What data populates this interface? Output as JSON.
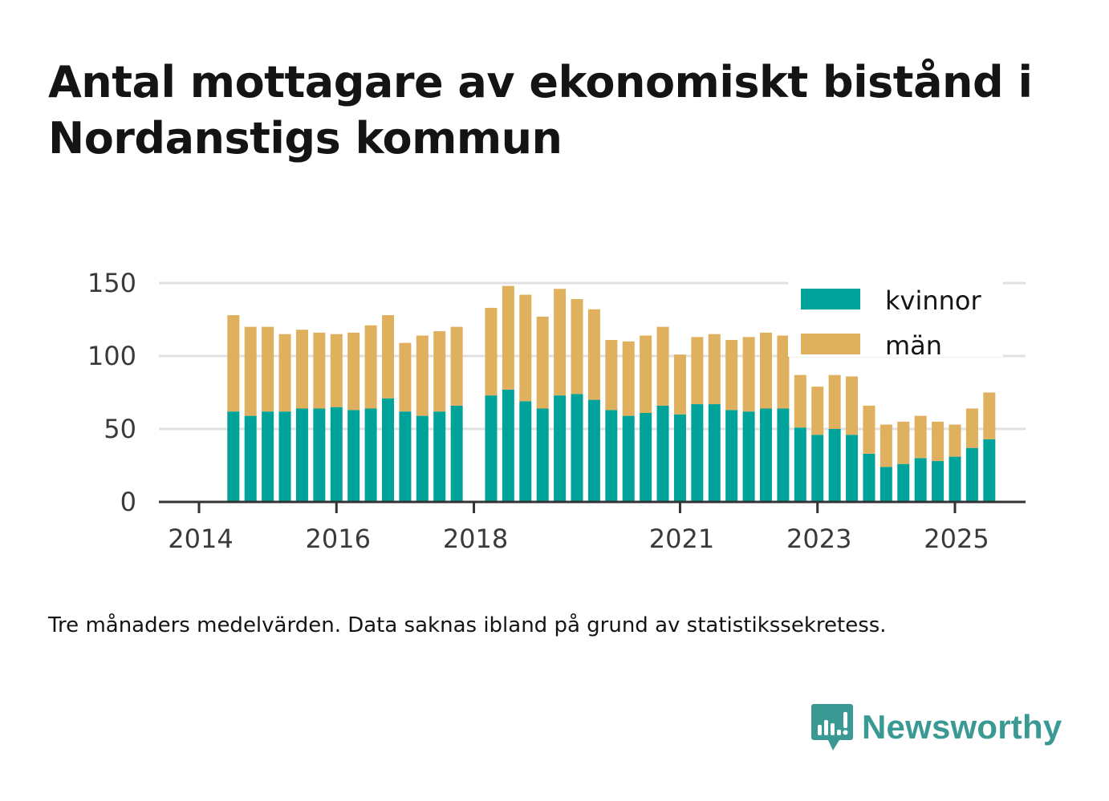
{
  "title": "Antal mottagare av ekonomiskt bistånd i Nordanstigs kommun",
  "caption": "Tre månaders medelvärden. Data saknas ibland på grund av statistikssekretess.",
  "logo": {
    "text": "Newsworthy",
    "icon": "newsworthy-chart-bubble-icon"
  },
  "colors": {
    "kvinnor": "#00a39a",
    "man": "#dfb05e",
    "grid": "#e1e1e1",
    "axis": "#333333"
  },
  "chart_data": {
    "type": "bar",
    "stacked": true,
    "title": "",
    "xlabel": "",
    "ylabel": "",
    "ylim": [
      0,
      150
    ],
    "y_ticks": [
      0,
      50,
      100,
      150
    ],
    "x_tick_labels": [
      {
        "year": 2014,
        "label": "2014"
      },
      {
        "year": 2016,
        "label": "2016"
      },
      {
        "year": 2018,
        "label": "2018"
      },
      {
        "year": 2021,
        "label": "2021"
      },
      {
        "year": 2023,
        "label": "2023"
      },
      {
        "year": 2025,
        "label": "2025"
      }
    ],
    "grid": true,
    "legend_position": "top-right",
    "categories": [
      "2014-Q2",
      "2014-Q3",
      "2014-Q4",
      "2015-Q1",
      "2015-Q2",
      "2015-Q3",
      "2015-Q4",
      "2016-Q1",
      "2016-Q2",
      "2016-Q3",
      "2016-Q4",
      "2017-Q1",
      "2017-Q2",
      "2017-Q3",
      "2017-Q4",
      "2018-Q1",
      "2018-Q2",
      "2018-Q3",
      "2018-Q4",
      "2019-Q1",
      "2019-Q2",
      "2019-Q3",
      "2019-Q4",
      "2020-Q1",
      "2020-Q2",
      "2020-Q3",
      "2020-Q4",
      "2021-Q1",
      "2021-Q2",
      "2021-Q3",
      "2021-Q4",
      "2022-Q1",
      "2022-Q2",
      "2022-Q3",
      "2022-Q4",
      "2023-Q1",
      "2023-Q2",
      "2023-Q3",
      "2023-Q4",
      "2024-Q1",
      "2024-Q2",
      "2024-Q3",
      "2024-Q4",
      "2025-Q1",
      "2025-Q2"
    ],
    "x_numeric": [
      2014.5,
      2014.75,
      2015.0,
      2015.25,
      2015.5,
      2015.75,
      2016.0,
      2016.25,
      2016.5,
      2016.75,
      2017.0,
      2017.25,
      2017.5,
      2017.75,
      2018.0,
      2018.25,
      2018.5,
      2018.75,
      2019.0,
      2019.25,
      2019.5,
      2019.75,
      2020.0,
      2020.25,
      2020.5,
      2020.75,
      2021.0,
      2021.25,
      2021.5,
      2021.75,
      2022.0,
      2022.25,
      2022.5,
      2022.75,
      2023.0,
      2023.25,
      2023.5,
      2023.75,
      2024.0,
      2024.25,
      2024.5,
      2024.75,
      2025.0,
      2025.25,
      2025.5
    ],
    "series": [
      {
        "name": "kvinnor",
        "color": "#00a39a",
        "values": [
          62,
          59,
          62,
          62,
          64,
          64,
          65,
          63,
          64,
          71,
          62,
          59,
          62,
          66,
          null,
          73,
          77,
          69,
          64,
          73,
          74,
          70,
          63,
          59,
          61,
          66,
          60,
          67,
          67,
          63,
          62,
          64,
          64,
          51,
          46,
          50,
          46,
          33,
          24,
          26,
          30,
          28,
          31,
          37,
          43
        ]
      },
      {
        "name": "män",
        "color": "#dfb05e",
        "values": [
          66,
          61,
          58,
          53,
          54,
          52,
          50,
          53,
          57,
          57,
          47,
          55,
          55,
          54,
          null,
          60,
          71,
          73,
          63,
          73,
          65,
          62,
          48,
          51,
          53,
          54,
          41,
          46,
          48,
          48,
          51,
          52,
          50,
          36,
          33,
          37,
          40,
          33,
          29,
          29,
          29,
          27,
          22,
          27,
          32
        ]
      }
    ],
    "legend": [
      {
        "label": "kvinnor",
        "color": "#00a39a"
      },
      {
        "label": "män",
        "color": "#dfb05e"
      }
    ]
  }
}
